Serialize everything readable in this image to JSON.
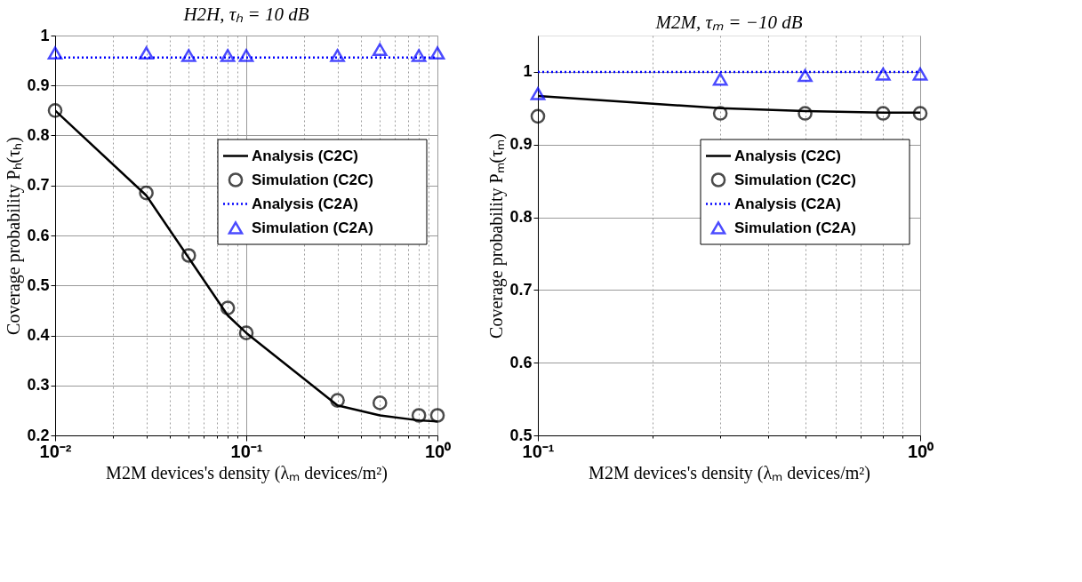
{
  "chart_data": [
    {
      "type": "line",
      "title": "H2H, τₕ = 10 dB",
      "xlabel": "M2M devices's density (λₘ devices/m²)",
      "ylabel": "Coverage probability Pₕ(τₕ)",
      "log": "x",
      "grid": true,
      "legend": "center right",
      "xlim": [
        0.01,
        1
      ],
      "ylim": [
        0.2,
        1
      ],
      "xticks": [
        {
          "value": 0.01,
          "label": "10⁻²"
        },
        {
          "value": 0.02,
          "label": null
        },
        {
          "value": 0.03,
          "label": null
        },
        {
          "value": 0.04,
          "label": null
        },
        {
          "value": 0.05,
          "label": null
        },
        {
          "value": 0.06,
          "label": null
        },
        {
          "value": 0.07,
          "label": null
        },
        {
          "value": 0.08,
          "label": null
        },
        {
          "value": 0.09,
          "label": null
        },
        {
          "value": 0.1,
          "label": "10⁻¹"
        },
        {
          "value": 0.2,
          "label": null
        },
        {
          "value": 0.3,
          "label": null
        },
        {
          "value": 0.4,
          "label": null
        },
        {
          "value": 0.5,
          "label": null
        },
        {
          "value": 0.6,
          "label": null
        },
        {
          "value": 0.7,
          "label": null
        },
        {
          "value": 0.8,
          "label": null
        },
        {
          "value": 0.9,
          "label": null
        },
        {
          "value": 1,
          "label": "10⁰"
        }
      ],
      "yticks": [
        0.2,
        0.3,
        0.4,
        0.5,
        0.6,
        0.7,
        0.8,
        0.9,
        1
      ],
      "series": [
        {
          "name": "Analysis (C2C)",
          "type": "line",
          "color": "#000000",
          "line_style": "solid",
          "x": [
            0.01,
            0.03,
            0.05,
            0.08,
            0.1,
            0.3,
            0.5,
            0.8,
            1
          ],
          "values": [
            0.85,
            0.68,
            0.555,
            0.44,
            0.405,
            0.26,
            0.24,
            0.23,
            0.228
          ]
        },
        {
          "name": "Simulation (C2C)",
          "type": "scatter",
          "color": "#000000",
          "marker": "circle",
          "x": [
            0.01,
            0.03,
            0.05,
            0.08,
            0.1,
            0.3,
            0.5,
            0.8,
            1
          ],
          "values": [
            0.85,
            0.685,
            0.56,
            0.455,
            0.405,
            0.27,
            0.265,
            0.24,
            0.24
          ]
        },
        {
          "name": "Analysis (C2A)",
          "type": "line",
          "color": "#0000ff",
          "line_style": "dotted",
          "x": [
            0.01,
            0.03,
            0.05,
            0.08,
            0.1,
            0.3,
            0.5,
            0.8,
            1
          ],
          "values": [
            0.956,
            0.956,
            0.956,
            0.956,
            0.956,
            0.956,
            0.956,
            0.956,
            0.956
          ]
        },
        {
          "name": "Simulation (C2A)",
          "type": "scatter",
          "color": "#0000ff",
          "marker": "triangle",
          "x": [
            0.01,
            0.03,
            0.05,
            0.08,
            0.1,
            0.3,
            0.5,
            0.8,
            1
          ],
          "values": [
            0.965,
            0.965,
            0.96,
            0.96,
            0.96,
            0.96,
            0.972,
            0.96,
            0.965
          ]
        }
      ]
    },
    {
      "type": "line",
      "title": "M2M, τₘ = −10 dB",
      "xlabel": "M2M devices's density (λₘ devices/m²)",
      "ylabel": "Coverage probability Pₘ(τₘ)",
      "log": "x",
      "grid": true,
      "legend": "center right",
      "xlim": [
        0.1,
        1
      ],
      "ylim": [
        0.5,
        1.05
      ],
      "xticks": [
        {
          "value": 0.1,
          "label": "10⁻¹"
        },
        {
          "value": 0.2,
          "label": null
        },
        {
          "value": 0.3,
          "label": null
        },
        {
          "value": 0.4,
          "label": null
        },
        {
          "value": 0.5,
          "label": null
        },
        {
          "value": 0.6,
          "label": null
        },
        {
          "value": 0.7,
          "label": null
        },
        {
          "value": 0.8,
          "label": null
        },
        {
          "value": 0.9,
          "label": null
        },
        {
          "value": 1,
          "label": "10⁰"
        }
      ],
      "yticks": [
        0.5,
        0.6,
        0.7,
        0.8,
        0.9,
        1
      ],
      "series": [
        {
          "name": "Analysis (C2C)",
          "type": "line",
          "color": "#000000",
          "line_style": "solid",
          "x": [
            0.1,
            0.3,
            0.5,
            0.8,
            1
          ],
          "values": [
            0.967,
            0.95,
            0.946,
            0.944,
            0.944
          ]
        },
        {
          "name": "Simulation (C2C)",
          "type": "scatter",
          "color": "#000000",
          "marker": "circle",
          "x": [
            0.1,
            0.3,
            0.5,
            0.8,
            1
          ],
          "values": [
            0.939,
            0.943,
            0.943,
            0.943,
            0.943
          ]
        },
        {
          "name": "Analysis (C2A)",
          "type": "line",
          "color": "#0000ff",
          "line_style": "dotted",
          "x": [
            0.1,
            0.3,
            0.5,
            0.8,
            1
          ],
          "values": [
            1.0,
            1.0,
            1.0,
            1.0,
            1.0
          ]
        },
        {
          "name": "Simulation (C2A)",
          "type": "scatter",
          "color": "#0000ff",
          "marker": "triangle",
          "x": [
            0.1,
            0.3,
            0.5,
            0.8,
            1
          ],
          "values": [
            0.97,
            0.99,
            0.995,
            0.997,
            0.997
          ]
        }
      ]
    }
  ]
}
